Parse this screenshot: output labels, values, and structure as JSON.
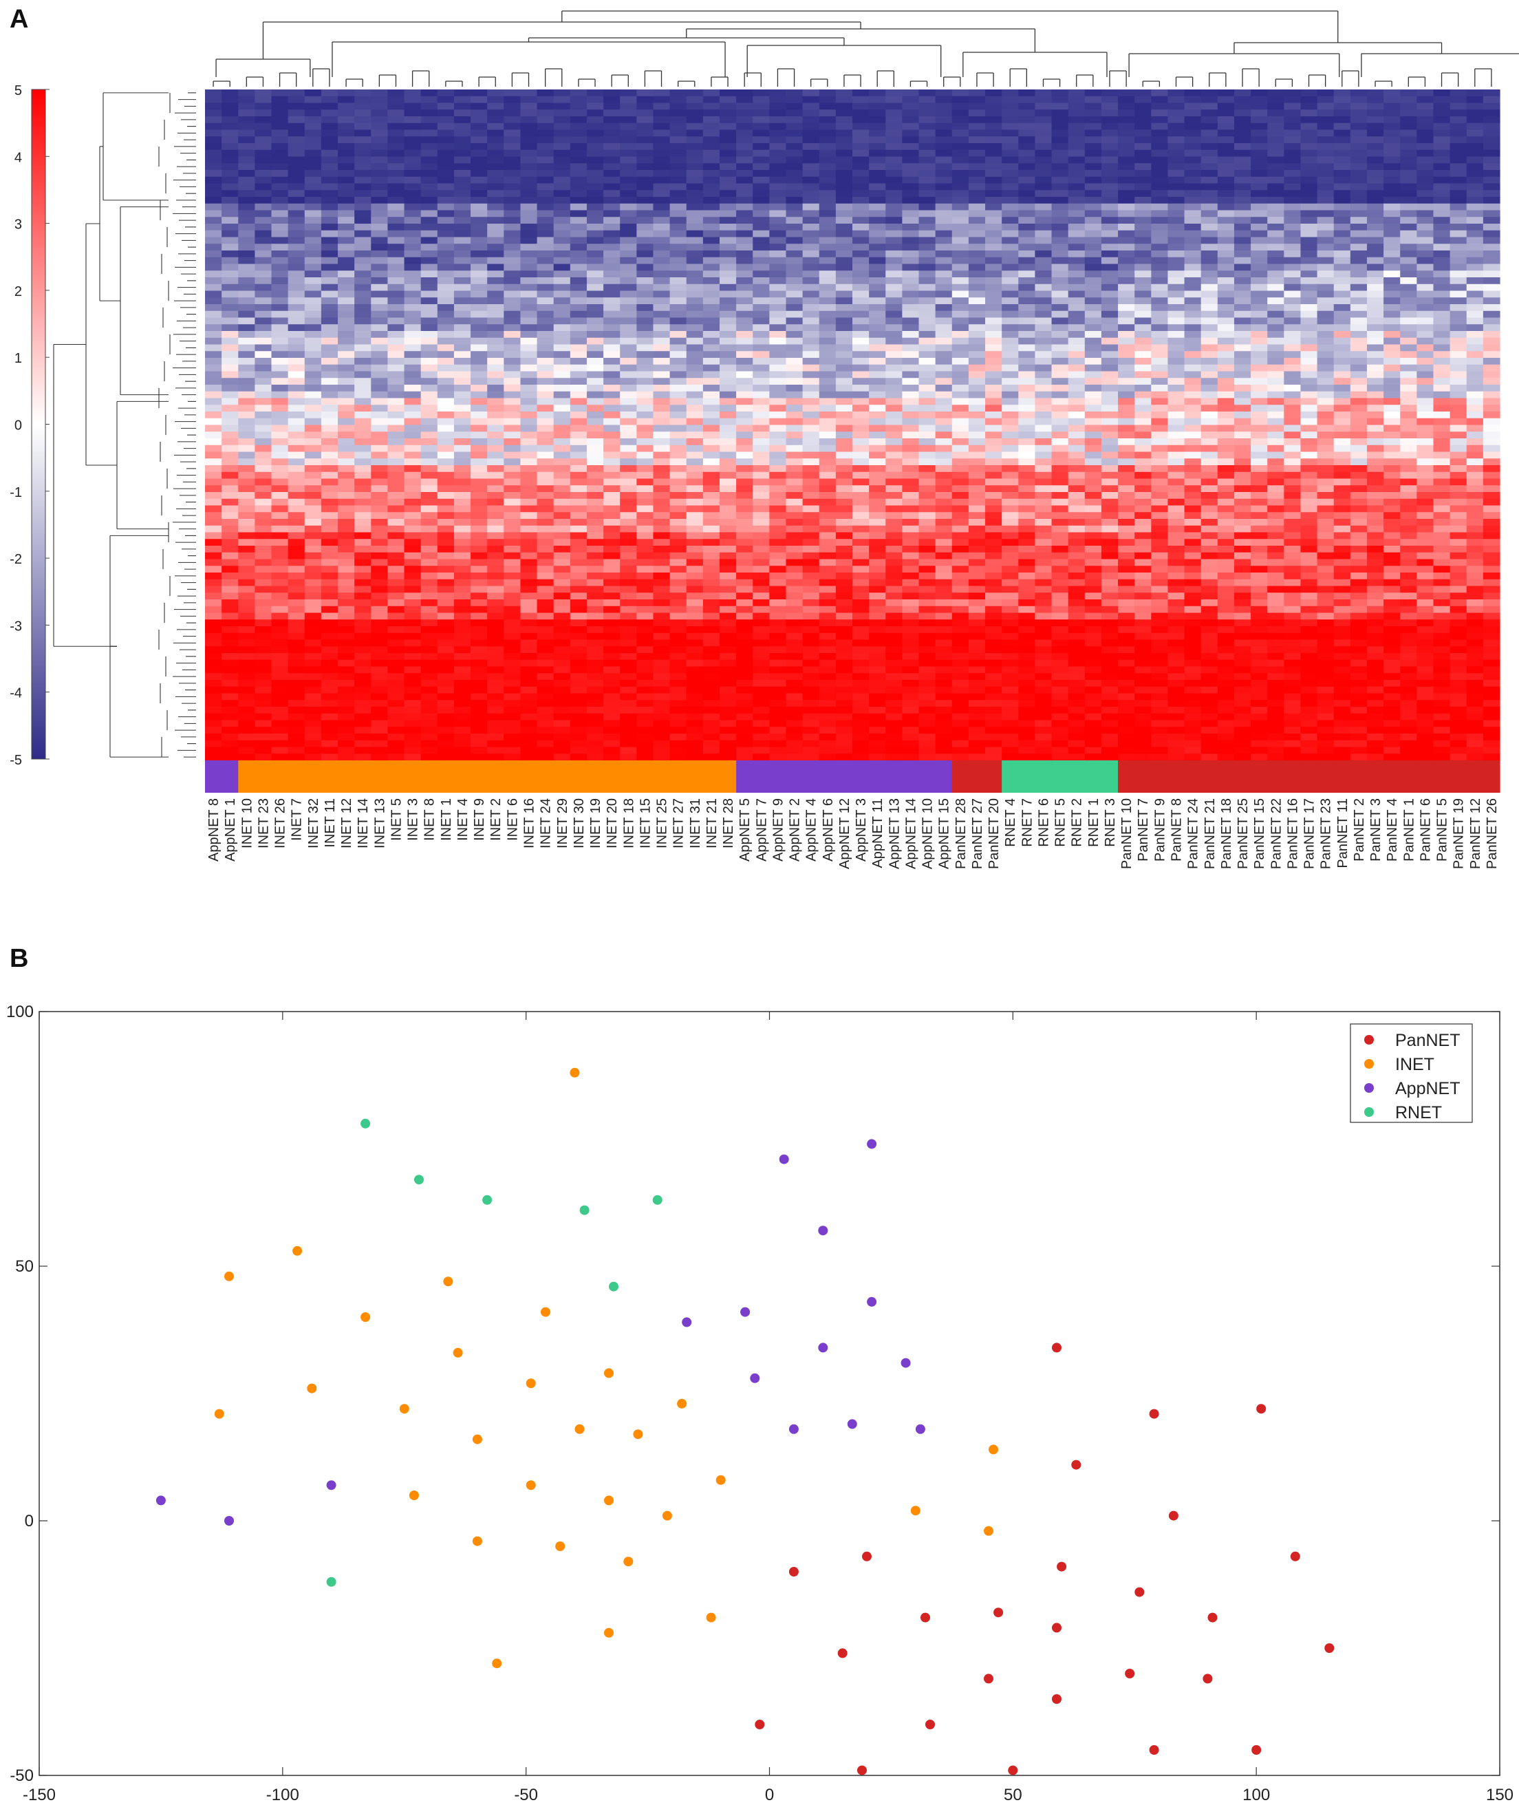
{
  "panels": {
    "a": {
      "letter": "A"
    },
    "b": {
      "letter": "B"
    }
  },
  "colors": {
    "low": "#2e2c87",
    "mid": "#ffffff",
    "high": "#ff0000",
    "PanNET": "#d42323",
    "INET": "#ff8c00",
    "AppNET": "#7a3ecc",
    "RNET": "#3cc98a",
    "rnet_bar": "#3ccf8e",
    "axis": "#222222"
  },
  "chart_data": [
    {
      "type": "heatmap",
      "title": "",
      "colorbar": {
        "min": -5,
        "max": 5,
        "ticks": [
          "5",
          "4",
          "3",
          "2",
          "1",
          "0",
          "-1",
          "-2",
          "-3",
          "-4",
          "-5"
        ]
      },
      "samples": [
        {
          "name": "AppNET 8",
          "group": "AppNET"
        },
        {
          "name": "AppNET 1",
          "group": "AppNET"
        },
        {
          "name": "INET 10",
          "group": "INET"
        },
        {
          "name": "INET 23",
          "group": "INET"
        },
        {
          "name": "INET 26",
          "group": "INET"
        },
        {
          "name": "INET 7",
          "group": "INET"
        },
        {
          "name": "INET 32",
          "group": "INET"
        },
        {
          "name": "INET 11",
          "group": "INET"
        },
        {
          "name": "INET 12",
          "group": "INET"
        },
        {
          "name": "INET 14",
          "group": "INET"
        },
        {
          "name": "INET 13",
          "group": "INET"
        },
        {
          "name": "INET 5",
          "group": "INET"
        },
        {
          "name": "INET 3",
          "group": "INET"
        },
        {
          "name": "INET 8",
          "group": "INET"
        },
        {
          "name": "INET 1",
          "group": "INET"
        },
        {
          "name": "INET 4",
          "group": "INET"
        },
        {
          "name": "INET 9",
          "group": "INET"
        },
        {
          "name": "INET 2",
          "group": "INET"
        },
        {
          "name": "INET 6",
          "group": "INET"
        },
        {
          "name": "INET 16",
          "group": "INET"
        },
        {
          "name": "INET 24",
          "group": "INET"
        },
        {
          "name": "INET 29",
          "group": "INET"
        },
        {
          "name": "INET 30",
          "group": "INET"
        },
        {
          "name": "INET 19",
          "group": "INET"
        },
        {
          "name": "INET 20",
          "group": "INET"
        },
        {
          "name": "INET 18",
          "group": "INET"
        },
        {
          "name": "INET 15",
          "group": "INET"
        },
        {
          "name": "INET 25",
          "group": "INET"
        },
        {
          "name": "INET 27",
          "group": "INET"
        },
        {
          "name": "INET 31",
          "group": "INET"
        },
        {
          "name": "INET 21",
          "group": "INET"
        },
        {
          "name": "INET 28",
          "group": "INET"
        },
        {
          "name": "AppNET 5",
          "group": "AppNET"
        },
        {
          "name": "AppNET 7",
          "group": "AppNET"
        },
        {
          "name": "AppNET 9",
          "group": "AppNET"
        },
        {
          "name": "AppNET 2",
          "group": "AppNET"
        },
        {
          "name": "AppNET 4",
          "group": "AppNET"
        },
        {
          "name": "AppNET 6",
          "group": "AppNET"
        },
        {
          "name": "AppNET 12",
          "group": "AppNET"
        },
        {
          "name": "AppNET 3",
          "group": "AppNET"
        },
        {
          "name": "AppNET 11",
          "group": "AppNET"
        },
        {
          "name": "AppNET 13",
          "group": "AppNET"
        },
        {
          "name": "AppNET 14",
          "group": "AppNET"
        },
        {
          "name": "AppNET 10",
          "group": "AppNET"
        },
        {
          "name": "AppNET 15",
          "group": "AppNET"
        },
        {
          "name": "PanNET 28",
          "group": "PanNET"
        },
        {
          "name": "PanNET 27",
          "group": "PanNET"
        },
        {
          "name": "PanNET 20",
          "group": "PanNET"
        },
        {
          "name": "RNET 4",
          "group": "RNET"
        },
        {
          "name": "RNET 7",
          "group": "RNET"
        },
        {
          "name": "RNET 6",
          "group": "RNET"
        },
        {
          "name": "RNET 5",
          "group": "RNET"
        },
        {
          "name": "RNET 2",
          "group": "RNET"
        },
        {
          "name": "RNET 1",
          "group": "RNET"
        },
        {
          "name": "RNET 3",
          "group": "RNET"
        },
        {
          "name": "PanNET 10",
          "group": "PanNET"
        },
        {
          "name": "PanNET 7",
          "group": "PanNET"
        },
        {
          "name": "PanNET 9",
          "group": "PanNET"
        },
        {
          "name": "PanNET 8",
          "group": "PanNET"
        },
        {
          "name": "PanNET 24",
          "group": "PanNET"
        },
        {
          "name": "PanNET 21",
          "group": "PanNET"
        },
        {
          "name": "PanNET 18",
          "group": "PanNET"
        },
        {
          "name": "PanNET 25",
          "group": "PanNET"
        },
        {
          "name": "PanNET 15",
          "group": "PanNET"
        },
        {
          "name": "PanNET 22",
          "group": "PanNET"
        },
        {
          "name": "PanNET 16",
          "group": "PanNET"
        },
        {
          "name": "PanNET 17",
          "group": "PanNET"
        },
        {
          "name": "PanNET 23",
          "group": "PanNET"
        },
        {
          "name": "PanNET 11",
          "group": "PanNET"
        },
        {
          "name": "PanNET 2",
          "group": "PanNET"
        },
        {
          "name": "PanNET 3",
          "group": "PanNET"
        },
        {
          "name": "PanNET 4",
          "group": "PanNET"
        },
        {
          "name": "PanNET 1",
          "group": "PanNET"
        },
        {
          "name": "PanNET 6",
          "group": "PanNET"
        },
        {
          "name": "PanNET 5",
          "group": "PanNET"
        },
        {
          "name": "PanNET 19",
          "group": "PanNET"
        },
        {
          "name": "PanNET 12",
          "group": "PanNET"
        },
        {
          "name": "PanNET 26",
          "group": "PanNET"
        }
      ],
      "row_profile": {
        "rows": 100,
        "bands": [
          {
            "from": 0,
            "to": 16,
            "mean": -4.6
          },
          {
            "from": 17,
            "to": 26,
            "mean": -3.0
          },
          {
            "from": 27,
            "to": 35,
            "mean": -2.2
          },
          {
            "from": 36,
            "to": 45,
            "mean": -1.0
          },
          {
            "from": 46,
            "to": 55,
            "mean": 0.3
          },
          {
            "from": 56,
            "to": 65,
            "mean": 2.0
          },
          {
            "from": 66,
            "to": 78,
            "mean": 3.2
          },
          {
            "from": 79,
            "to": 99,
            "mean": 4.8
          }
        ]
      }
    },
    {
      "type": "scatter",
      "title": "",
      "xlabel": "",
      "ylabel": "",
      "xlim": [
        -150,
        150
      ],
      "ylim": [
        -50,
        100
      ],
      "xticks": [
        "-150",
        "-100",
        "-50",
        "0",
        "50",
        "100",
        "150"
      ],
      "yticks": [
        "100",
        "50",
        "0",
        "-50"
      ],
      "legend_position": "top-right",
      "series": [
        {
          "name": "PanNET",
          "points": [
            [
              59,
              34
            ],
            [
              79,
              21
            ],
            [
              101,
              22
            ],
            [
              63,
              11
            ],
            [
              83,
              1
            ],
            [
              108,
              -7
            ],
            [
              5,
              -10
            ],
            [
              20,
              -7
            ],
            [
              60,
              -9
            ],
            [
              76,
              -14
            ],
            [
              32,
              -19
            ],
            [
              47,
              -18
            ],
            [
              91,
              -19
            ],
            [
              59,
              -21
            ],
            [
              15,
              -26
            ],
            [
              115,
              -25
            ],
            [
              45,
              -31
            ],
            [
              74,
              -30
            ],
            [
              90,
              -31
            ],
            [
              59,
              -35
            ],
            [
              33,
              -40
            ],
            [
              -2,
              -40
            ],
            [
              79,
              -45
            ],
            [
              100,
              -45
            ],
            [
              19,
              -49
            ],
            [
              50,
              -49
            ]
          ]
        },
        {
          "name": "INET",
          "points": [
            [
              -40,
              88
            ],
            [
              -97,
              53
            ],
            [
              -111,
              48
            ],
            [
              -66,
              47
            ],
            [
              -83,
              40
            ],
            [
              -46,
              41
            ],
            [
              -64,
              33
            ],
            [
              -49,
              27
            ],
            [
              -33,
              29
            ],
            [
              -94,
              26
            ],
            [
              -75,
              22
            ],
            [
              -18,
              23
            ],
            [
              -113,
              21
            ],
            [
              -39,
              18
            ],
            [
              -27,
              17
            ],
            [
              -60,
              16
            ],
            [
              46,
              14
            ],
            [
              -49,
              7
            ],
            [
              -10,
              8
            ],
            [
              -73,
              5
            ],
            [
              -33,
              4
            ],
            [
              -21,
              1
            ],
            [
              30,
              2
            ],
            [
              45,
              -2
            ],
            [
              -60,
              -4
            ],
            [
              -43,
              -5
            ],
            [
              -29,
              -8
            ],
            [
              -33,
              -22
            ],
            [
              -12,
              -19
            ],
            [
              -56,
              -28
            ]
          ]
        },
        {
          "name": "AppNET",
          "points": [
            [
              3,
              71
            ],
            [
              21,
              74
            ],
            [
              11,
              57
            ],
            [
              21,
              43
            ],
            [
              -5,
              41
            ],
            [
              -17,
              39
            ],
            [
              11,
              34
            ],
            [
              28,
              31
            ],
            [
              -3,
              28
            ],
            [
              5,
              18
            ],
            [
              17,
              19
            ],
            [
              31,
              18
            ],
            [
              -90,
              7
            ],
            [
              -125,
              4
            ],
            [
              -111,
              0
            ]
          ]
        },
        {
          "name": "RNET",
          "points": [
            [
              -83,
              78
            ],
            [
              -72,
              67
            ],
            [
              -58,
              63
            ],
            [
              -38,
              61
            ],
            [
              -23,
              63
            ],
            [
              -32,
              46
            ],
            [
              -90,
              -12
            ]
          ]
        }
      ]
    }
  ]
}
